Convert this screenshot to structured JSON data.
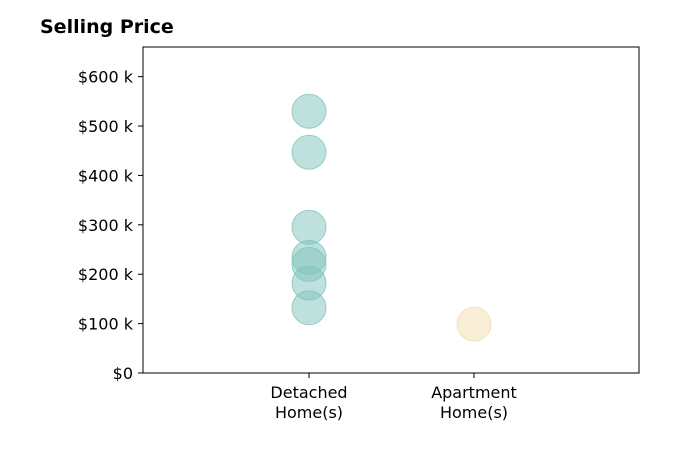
{
  "chart_data": {
    "type": "scatter",
    "title": "Selling Price",
    "xlabel": "",
    "ylabel": "",
    "categories": [
      [
        "Detached",
        "Home(s)"
      ],
      [
        "Apartment",
        "Home(s)"
      ]
    ],
    "y_tick_labels": [
      "$0",
      "$100 k",
      "$200 k",
      "$300 k",
      "$400 k",
      "$500 k",
      "$600 k"
    ],
    "y_ticks": [
      0,
      100000,
      200000,
      300000,
      400000,
      500000,
      600000
    ],
    "ylim": [
      0,
      660000
    ],
    "grid": false,
    "series": [
      {
        "category_index": 0,
        "color": "#7fc4bb",
        "values": [
          530000,
          447000,
          295000,
          234000,
          220000,
          182000,
          132000
        ]
      },
      {
        "category_index": 1,
        "color": "#f3ddb0",
        "values": [
          99000
        ]
      }
    ]
  }
}
